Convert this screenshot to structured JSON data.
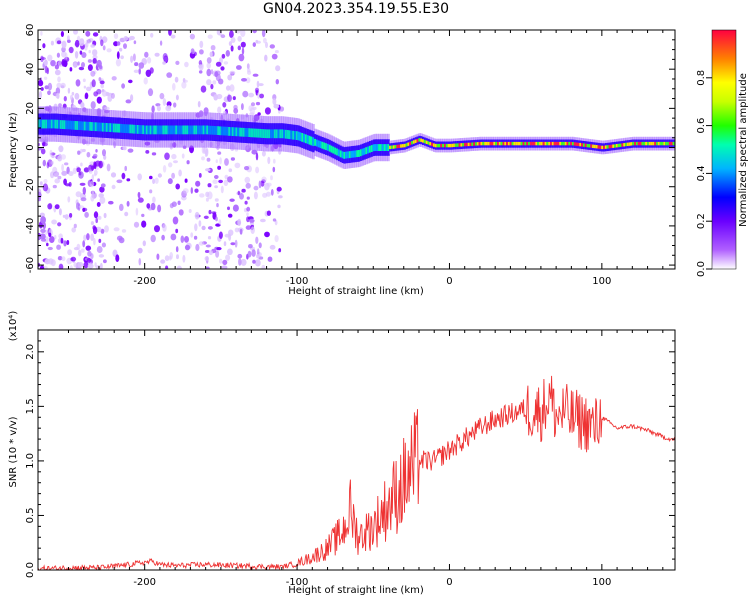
{
  "title": "GN04.2023.354.19.55.E30",
  "chart_data": [
    {
      "type": "heatmap",
      "xlabel": "Height of straight line (km)",
      "ylabel": "Frequency (Hz)",
      "xlim": [
        -270,
        148
      ],
      "ylim": [
        -62,
        60
      ],
      "xticks": [
        -200,
        -100,
        0,
        100
      ],
      "yticks": [
        -60,
        -40,
        -20,
        0,
        20,
        40,
        60
      ],
      "colorbar": {
        "label": "Normalized spectral amplitude",
        "range": [
          0,
          1
        ],
        "ticks": [
          "0.0",
          "0.2",
          "0.4",
          "0.6",
          "0.8"
        ],
        "colormap": [
          "#ffffff",
          "#8a00ff",
          "#0000ff",
          "#00ccff",
          "#00ff66",
          "#33ff00",
          "#ffff00",
          "#ff8800",
          "#ff0033"
        ]
      },
      "ridge": {
        "x": [
          -260,
          -240,
          -220,
          -200,
          -180,
          -160,
          -140,
          -120,
          -110,
          -100,
          -90,
          -80,
          -70,
          -60,
          -50,
          -40,
          -30,
          -20,
          -10,
          0,
          20,
          40,
          60,
          80,
          100,
          120,
          148
        ],
        "frequency": [
          12,
          11,
          10,
          9,
          9,
          9,
          8,
          7,
          7,
          6,
          3,
          0,
          -4,
          -3,
          0,
          0,
          1,
          4,
          1,
          1,
          2,
          2,
          2,
          2,
          0,
          2,
          2
        ]
      }
    },
    {
      "type": "line",
      "xlabel": "Height of straight line (km)",
      "ylabel": "SNR (10 * v/v)",
      "yscale_label": "(x10⁴)",
      "xlim": [
        -270,
        148
      ],
      "ylim": [
        0,
        2.2
      ],
      "xticks": [
        -200,
        -100,
        0,
        100
      ],
      "yticks": [
        "0.0",
        "0.5",
        "1.0",
        "1.5",
        "2.0"
      ],
      "color": "#ee3333",
      "series": [
        {
          "x": [
            -270,
            -250,
            -230,
            -210,
            -195,
            -190,
            -180,
            -160,
            -140,
            -120,
            -110,
            -100,
            -90,
            -80,
            -70,
            -65,
            -60,
            -50,
            -40,
            -30,
            -20,
            -10,
            0,
            10,
            20,
            30,
            40,
            50,
            60,
            66,
            70,
            75,
            80,
            90,
            95,
            100,
            110,
            120,
            130,
            140,
            148
          ],
          "y": [
            0.01,
            0.02,
            0.02,
            0.05,
            0.08,
            0.05,
            0.04,
            0.05,
            0.04,
            0.03,
            0.03,
            0.06,
            0.12,
            0.2,
            0.35,
            0.55,
            0.3,
            0.4,
            0.6,
            0.8,
            1.0,
            1.0,
            1.1,
            1.2,
            1.3,
            1.38,
            1.43,
            1.48,
            1.45,
            1.6,
            1.4,
            1.45,
            1.4,
            1.35,
            1.3,
            1.4,
            1.3,
            1.32,
            1.28,
            1.22,
            1.19
          ]
        }
      ]
    }
  ]
}
